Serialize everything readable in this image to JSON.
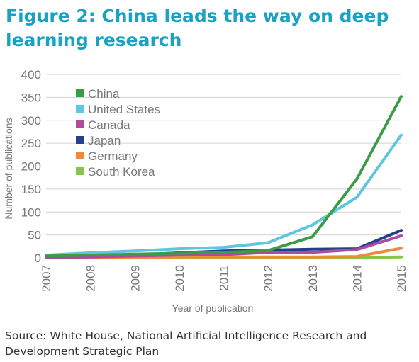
{
  "title": "Figure 2: China leads the way on deep learning research",
  "source": "Source: White House, National Artificial Intelligence Research and Development Strategic Plan",
  "chart_data": {
    "type": "line",
    "xlabel": "Year of publication",
    "ylabel": "Number of publications",
    "ylim": [
      0,
      400
    ],
    "yticks": [
      0,
      50,
      100,
      150,
      200,
      250,
      300,
      350,
      400
    ],
    "x": [
      "2007",
      "2008",
      "2009",
      "2010",
      "2011",
      "2012",
      "2013",
      "2014",
      "2015"
    ],
    "grid": true,
    "legend_position": "top-left",
    "series": [
      {
        "name": "China",
        "color": "#3a9c45",
        "values": [
          4,
          6,
          8,
          10,
          12,
          16,
          46,
          172,
          352
        ]
      },
      {
        "name": "United States",
        "color": "#5ec6e0",
        "values": [
          6,
          11,
          15,
          20,
          23,
          33,
          72,
          132,
          268
        ]
      },
      {
        "name": "Canada",
        "color": "#b04a9e",
        "values": [
          1,
          2,
          4,
          6,
          7,
          12,
          12,
          18,
          48
        ]
      },
      {
        "name": "Japan",
        "color": "#233f8e",
        "values": [
          1,
          3,
          6,
          11,
          15,
          17,
          19,
          20,
          60
        ]
      },
      {
        "name": "Germany",
        "color": "#ee8a3c",
        "values": [
          0,
          1,
          1,
          2,
          2,
          2,
          2,
          3,
          21
        ]
      },
      {
        "name": "South Korea",
        "color": "#86c54b",
        "values": [
          0,
          0,
          0,
          1,
          1,
          1,
          1,
          1,
          2
        ]
      }
    ]
  }
}
